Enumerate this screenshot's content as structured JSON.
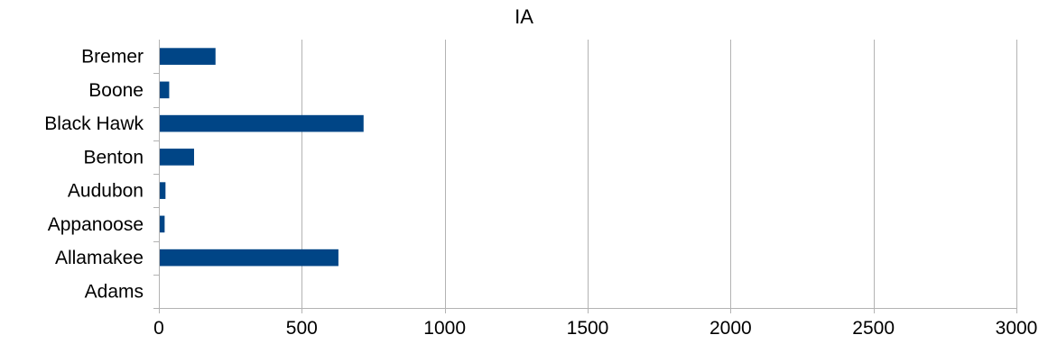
{
  "chart_data": {
    "type": "bar",
    "orientation": "horizontal",
    "title": "IA",
    "xlabel": "",
    "ylabel": "",
    "categories": [
      "Adams",
      "Allamakee",
      "Appanoose",
      "Audubon",
      "Benton",
      "Black Hawk",
      "Boone",
      "Bremer"
    ],
    "values": [
      0,
      625,
      17,
      20,
      120,
      713,
      33,
      195
    ],
    "xlim": [
      0,
      3000
    ],
    "x_ticks": [
      0,
      500,
      1000,
      1500,
      2000,
      2500,
      3000
    ],
    "grid": true,
    "legend": "none",
    "bar_color": "#004586",
    "grid_color": "#b3b3b3",
    "axis_color": "#b3b3b3",
    "text_color": "#000000"
  }
}
